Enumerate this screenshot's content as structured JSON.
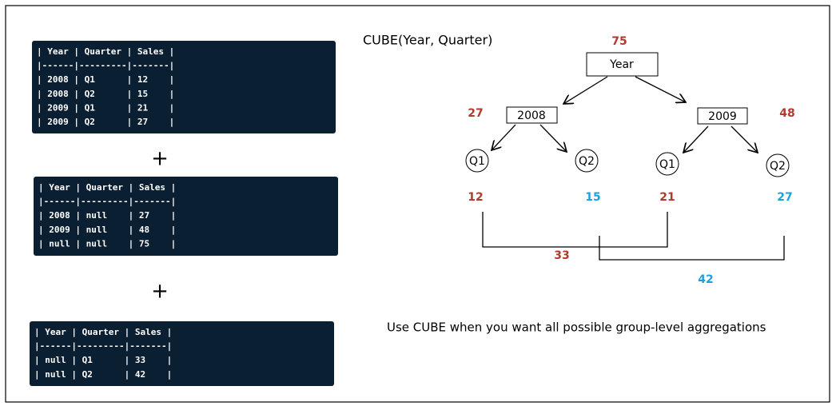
{
  "code_tables": [
    {
      "lines": [
        "| Year | Quarter | Sales |",
        "|------|---------|-------|",
        "| 2008 | Q1      | 12    |",
        "| 2008 | Q2      | 15    |",
        "| 2009 | Q1      | 21    |",
        "| 2009 | Q2      | 27    |"
      ]
    },
    {
      "lines": [
        "| Year | Quarter | Sales |",
        "|------|---------|-------|",
        "| 2008 | null    | 27    |",
        "| 2009 | null    | 48    |",
        "| null | null    | 75    |"
      ]
    },
    {
      "lines": [
        "| Year | Quarter | Sales |",
        "|------|---------|-------|",
        "| null | Q1      | 33    |",
        "| null | Q2      | 42    |"
      ]
    }
  ],
  "operators": [
    "+",
    "+"
  ],
  "diagram": {
    "title": "CUBE(Year, Quarter)",
    "root": {
      "label": "Year",
      "total": 75
    },
    "years": [
      {
        "label": "2008",
        "total": 27
      },
      {
        "label": "2009",
        "total": 48
      }
    ],
    "leaves": [
      {
        "label": "Q1",
        "value": 12
      },
      {
        "label": "Q2",
        "value": 15
      },
      {
        "label": "Q1",
        "value": 21
      },
      {
        "label": "Q2",
        "value": 27
      }
    ],
    "quarter_totals": [
      33,
      42
    ],
    "caption": "Use CUBE when you want all possible group-level aggregations"
  }
}
